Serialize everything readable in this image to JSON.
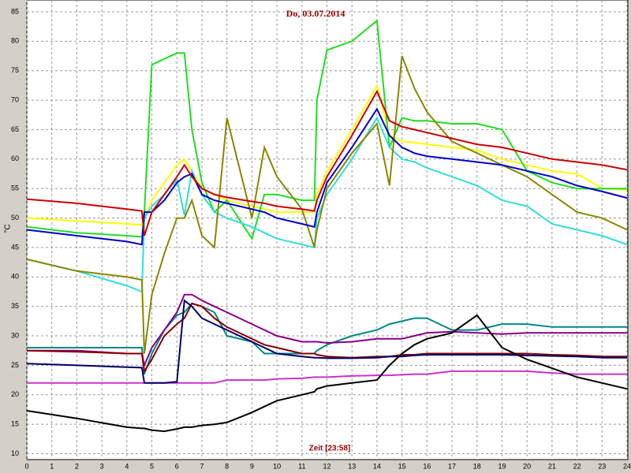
{
  "chart_data": {
    "type": "line",
    "title": "Do, 03.07.2014",
    "x_label": "Zeit [23:58]",
    "y_label": "°C",
    "x": [
      0,
      2,
      4,
      4.6,
      4.7,
      5,
      5.5,
      6,
      6.3,
      6.6,
      7,
      7.5,
      8,
      9,
      9.5,
      10,
      11,
      11.5,
      11.6,
      12,
      13,
      14,
      14.5,
      15,
      15.5,
      16,
      17,
      18,
      19,
      20,
      21,
      22,
      23,
      24
    ],
    "series": [
      {
        "color": "#ffff00",
        "values": [
          50,
          49.5,
          49,
          48.8,
          50,
          53,
          56,
          59,
          60,
          58,
          55,
          54,
          53,
          52,
          51.5,
          51,
          51,
          51,
          54,
          58,
          65,
          72.5,
          64,
          63,
          62.8,
          62.5,
          62,
          61.5,
          60,
          59,
          58,
          57.5,
          55,
          54.8
        ]
      },
      {
        "color": "#22dd22",
        "values": [
          48.5,
          47.5,
          47,
          46.8,
          51,
          76,
          77,
          78,
          78,
          65,
          56,
          51,
          53,
          46.5,
          54,
          54,
          53,
          53,
          70,
          78.5,
          80,
          83.5,
          62,
          67,
          66.5,
          66.5,
          66,
          66,
          65,
          58,
          56,
          55,
          55,
          55
        ]
      },
      {
        "color": "#33dddd",
        "values": [
          43,
          41,
          38.5,
          37.5,
          50,
          52,
          54,
          56.5,
          50.5,
          58,
          54,
          51,
          50,
          48.5,
          47.5,
          46.5,
          45.5,
          45,
          50,
          54,
          60,
          67,
          62,
          60,
          59.5,
          58.5,
          57,
          55.5,
          53,
          52,
          49,
          48,
          47,
          45.5
        ]
      },
      {
        "color": "#888800",
        "values": [
          43,
          41,
          40,
          39.5,
          27,
          37,
          44,
          50,
          50,
          53,
          47,
          45,
          67,
          50,
          62,
          57,
          51.5,
          45,
          48,
          55,
          61,
          66,
          55.5,
          77.5,
          72,
          68,
          63,
          61,
          59,
          57,
          54,
          51,
          50,
          48
        ]
      },
      {
        "color": "#0000cc",
        "values": [
          48,
          47,
          46,
          45.5,
          51,
          51,
          53,
          56,
          57,
          57.5,
          54,
          53,
          52.5,
          51.5,
          51,
          50,
          49,
          48.5,
          51,
          56,
          62,
          68.5,
          64,
          62,
          61,
          60.5,
          60,
          59.5,
          59,
          58,
          57,
          55.5,
          54.5,
          53.4
        ]
      },
      {
        "color": "#cc0000",
        "values": [
          53.2,
          52.5,
          51.5,
          51.2,
          47,
          51,
          54,
          57,
          59,
          57,
          55,
          54,
          53.5,
          52.8,
          52.5,
          52,
          51.5,
          51.2,
          53,
          57,
          64,
          71.5,
          66.5,
          65.5,
          65,
          64.5,
          63.5,
          62.5,
          62,
          61,
          60,
          59.5,
          59,
          58.2
        ]
      },
      {
        "color": "#cc33cc",
        "values": [
          22,
          22,
          22,
          22,
          22,
          22,
          22,
          22,
          22,
          22,
          22,
          22,
          22.5,
          22.5,
          22.5,
          22.7,
          22.8,
          23,
          23,
          23,
          23.2,
          23.3,
          23.3,
          23.4,
          23.5,
          23.5,
          24,
          24,
          24,
          24,
          23.7,
          23.5,
          23.5,
          23.5
        ]
      },
      {
        "color": "#008888",
        "values": [
          28,
          28,
          28,
          28,
          23.5,
          27,
          31,
          33.5,
          34,
          35.5,
          35,
          34,
          30,
          29,
          27,
          27,
          27,
          27,
          27.5,
          28.5,
          30,
          31,
          32,
          32.5,
          33,
          33,
          31,
          31,
          32,
          32,
          31.5,
          31.5,
          31.5,
          31.5
        ]
      },
      {
        "color": "#880088",
        "values": [
          27.5,
          27.5,
          27,
          27,
          25,
          28,
          31,
          34,
          37,
          37,
          36,
          35,
          34,
          32,
          31,
          30,
          29,
          29,
          29,
          28.8,
          29,
          29.5,
          29.5,
          29.5,
          30,
          30.5,
          30.7,
          30.5,
          30.3,
          30.5,
          30.5,
          30.5,
          30.5,
          30.5
        ]
      },
      {
        "color": "#880000",
        "values": [
          27.5,
          27.3,
          27,
          27,
          24,
          26,
          30,
          32,
          33,
          35.5,
          35,
          33,
          31.5,
          29.5,
          28.5,
          28,
          27,
          27,
          26.8,
          26.5,
          26.3,
          26.5,
          26.5,
          26.8,
          26.8,
          27,
          27,
          27,
          27,
          27,
          26.8,
          26.7,
          26.5,
          26.5
        ]
      },
      {
        "color": "#000066",
        "values": [
          25.3,
          25,
          24.7,
          24.6,
          22,
          22,
          22,
          22.2,
          36,
          35,
          33,
          32,
          31,
          29,
          28,
          27,
          26.5,
          26.3,
          26.3,
          26.2,
          26.2,
          26.3,
          26.5,
          26.5,
          26.7,
          26.8,
          26.8,
          26.8,
          26.8,
          26.7,
          26.6,
          26.5,
          26.3,
          26.3
        ]
      },
      {
        "color": "#000000",
        "values": [
          17.3,
          16,
          14.5,
          14.3,
          14.3,
          14,
          13.8,
          14.2,
          14.5,
          14.5,
          14.8,
          15,
          15.3,
          17,
          18,
          19,
          20,
          20.5,
          21,
          21.5,
          22,
          22.5,
          25,
          27,
          28.5,
          29.5,
          30.5,
          33.5,
          28,
          26,
          24.5,
          23,
          22,
          21
        ]
      }
    ],
    "xlim": [
      0,
      24
    ],
    "xticks": [
      0,
      1,
      2,
      3,
      4,
      5,
      6,
      7,
      8,
      9,
      10,
      11,
      12,
      13,
      14,
      15,
      16,
      17,
      18,
      19,
      20,
      21,
      22,
      23,
      24
    ],
    "ylim": [
      9,
      87
    ],
    "yticks": [
      10,
      15,
      20,
      25,
      30,
      35,
      40,
      45,
      50,
      55,
      60,
      65,
      70,
      75,
      80,
      85
    ],
    "grid": true
  }
}
